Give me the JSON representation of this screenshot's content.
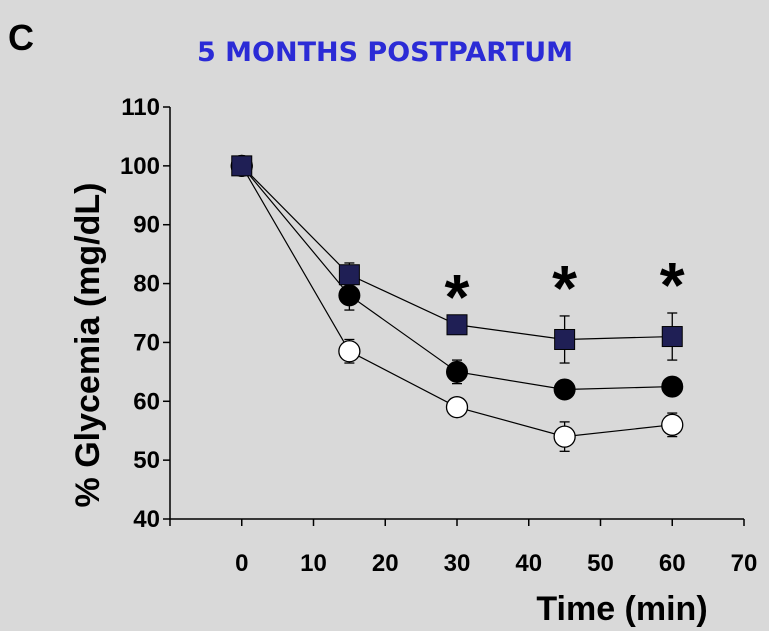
{
  "panel_letter": "C",
  "chart_data": {
    "type": "line",
    "title": "5 MONTHS POSTPARTUM",
    "xlabel": "Time (min)",
    "ylabel": "% Glycemia (mg/dL)",
    "xlim": [
      -10,
      70
    ],
    "ylim": [
      40,
      110
    ],
    "xticks": [
      0,
      10,
      20,
      30,
      40,
      50,
      60,
      70
    ],
    "yticks": [
      40,
      50,
      60,
      70,
      80,
      90,
      100,
      110
    ],
    "grid": false,
    "series": [
      {
        "marker": "square",
        "color": "#1f1f55",
        "x": [
          0,
          15,
          30,
          45,
          60
        ],
        "y": [
          100,
          81.5,
          73,
          70.5,
          71
        ],
        "err": [
          0,
          2,
          0,
          4,
          4
        ]
      },
      {
        "marker": "filled-circle",
        "color": "#000000",
        "x": [
          0,
          15,
          30,
          45,
          60
        ],
        "y": [
          100,
          78,
          65,
          62,
          62.5
        ],
        "err": [
          0,
          2.5,
          2,
          1.5,
          1.5
        ]
      },
      {
        "marker": "open-circle",
        "color": "#ffffff",
        "x": [
          0,
          15,
          30,
          45,
          60
        ],
        "y": [
          100,
          68.5,
          59,
          54,
          56
        ],
        "err": [
          0,
          2,
          0,
          2.5,
          2
        ]
      }
    ],
    "annotations": [
      {
        "text": "*",
        "x": 30
      },
      {
        "text": "*",
        "x": 45
      },
      {
        "text": "*",
        "x": 60
      }
    ]
  }
}
